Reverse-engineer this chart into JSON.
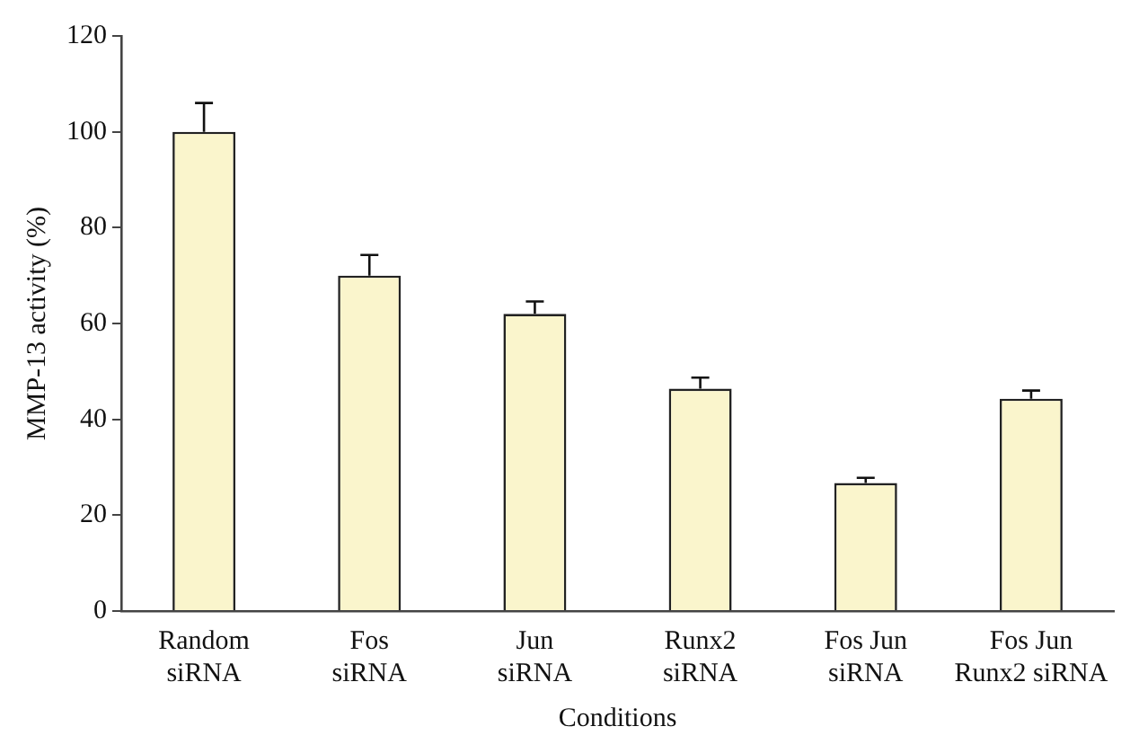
{
  "chart_data": {
    "type": "bar",
    "xlabel": "Conditions",
    "ylabel": "MMP-13 activity (%)",
    "categories": [
      "Random\nsiRNA",
      "Fos\nsiRNA",
      "Jun\nsiRNA",
      "Runx2\nsiRNA",
      "Fos Jun\nsiRNA",
      "Fos Jun\nRunx2 siRNA"
    ],
    "values": [
      100,
      70,
      62,
      46.4,
      26.7,
      44.3
    ],
    "errors": [
      [
        100,
        106
      ],
      [
        70,
        74.3
      ],
      [
        62,
        64.6
      ],
      [
        46.4,
        48.7
      ],
      [
        26.7,
        27.8
      ],
      [
        44.3,
        46
      ]
    ],
    "color": "#faf5cc",
    "ylim": [
      0,
      120
    ],
    "yticks": [
      0,
      20,
      40,
      60,
      80,
      100,
      120
    ],
    "grid": false,
    "legend": false
  }
}
